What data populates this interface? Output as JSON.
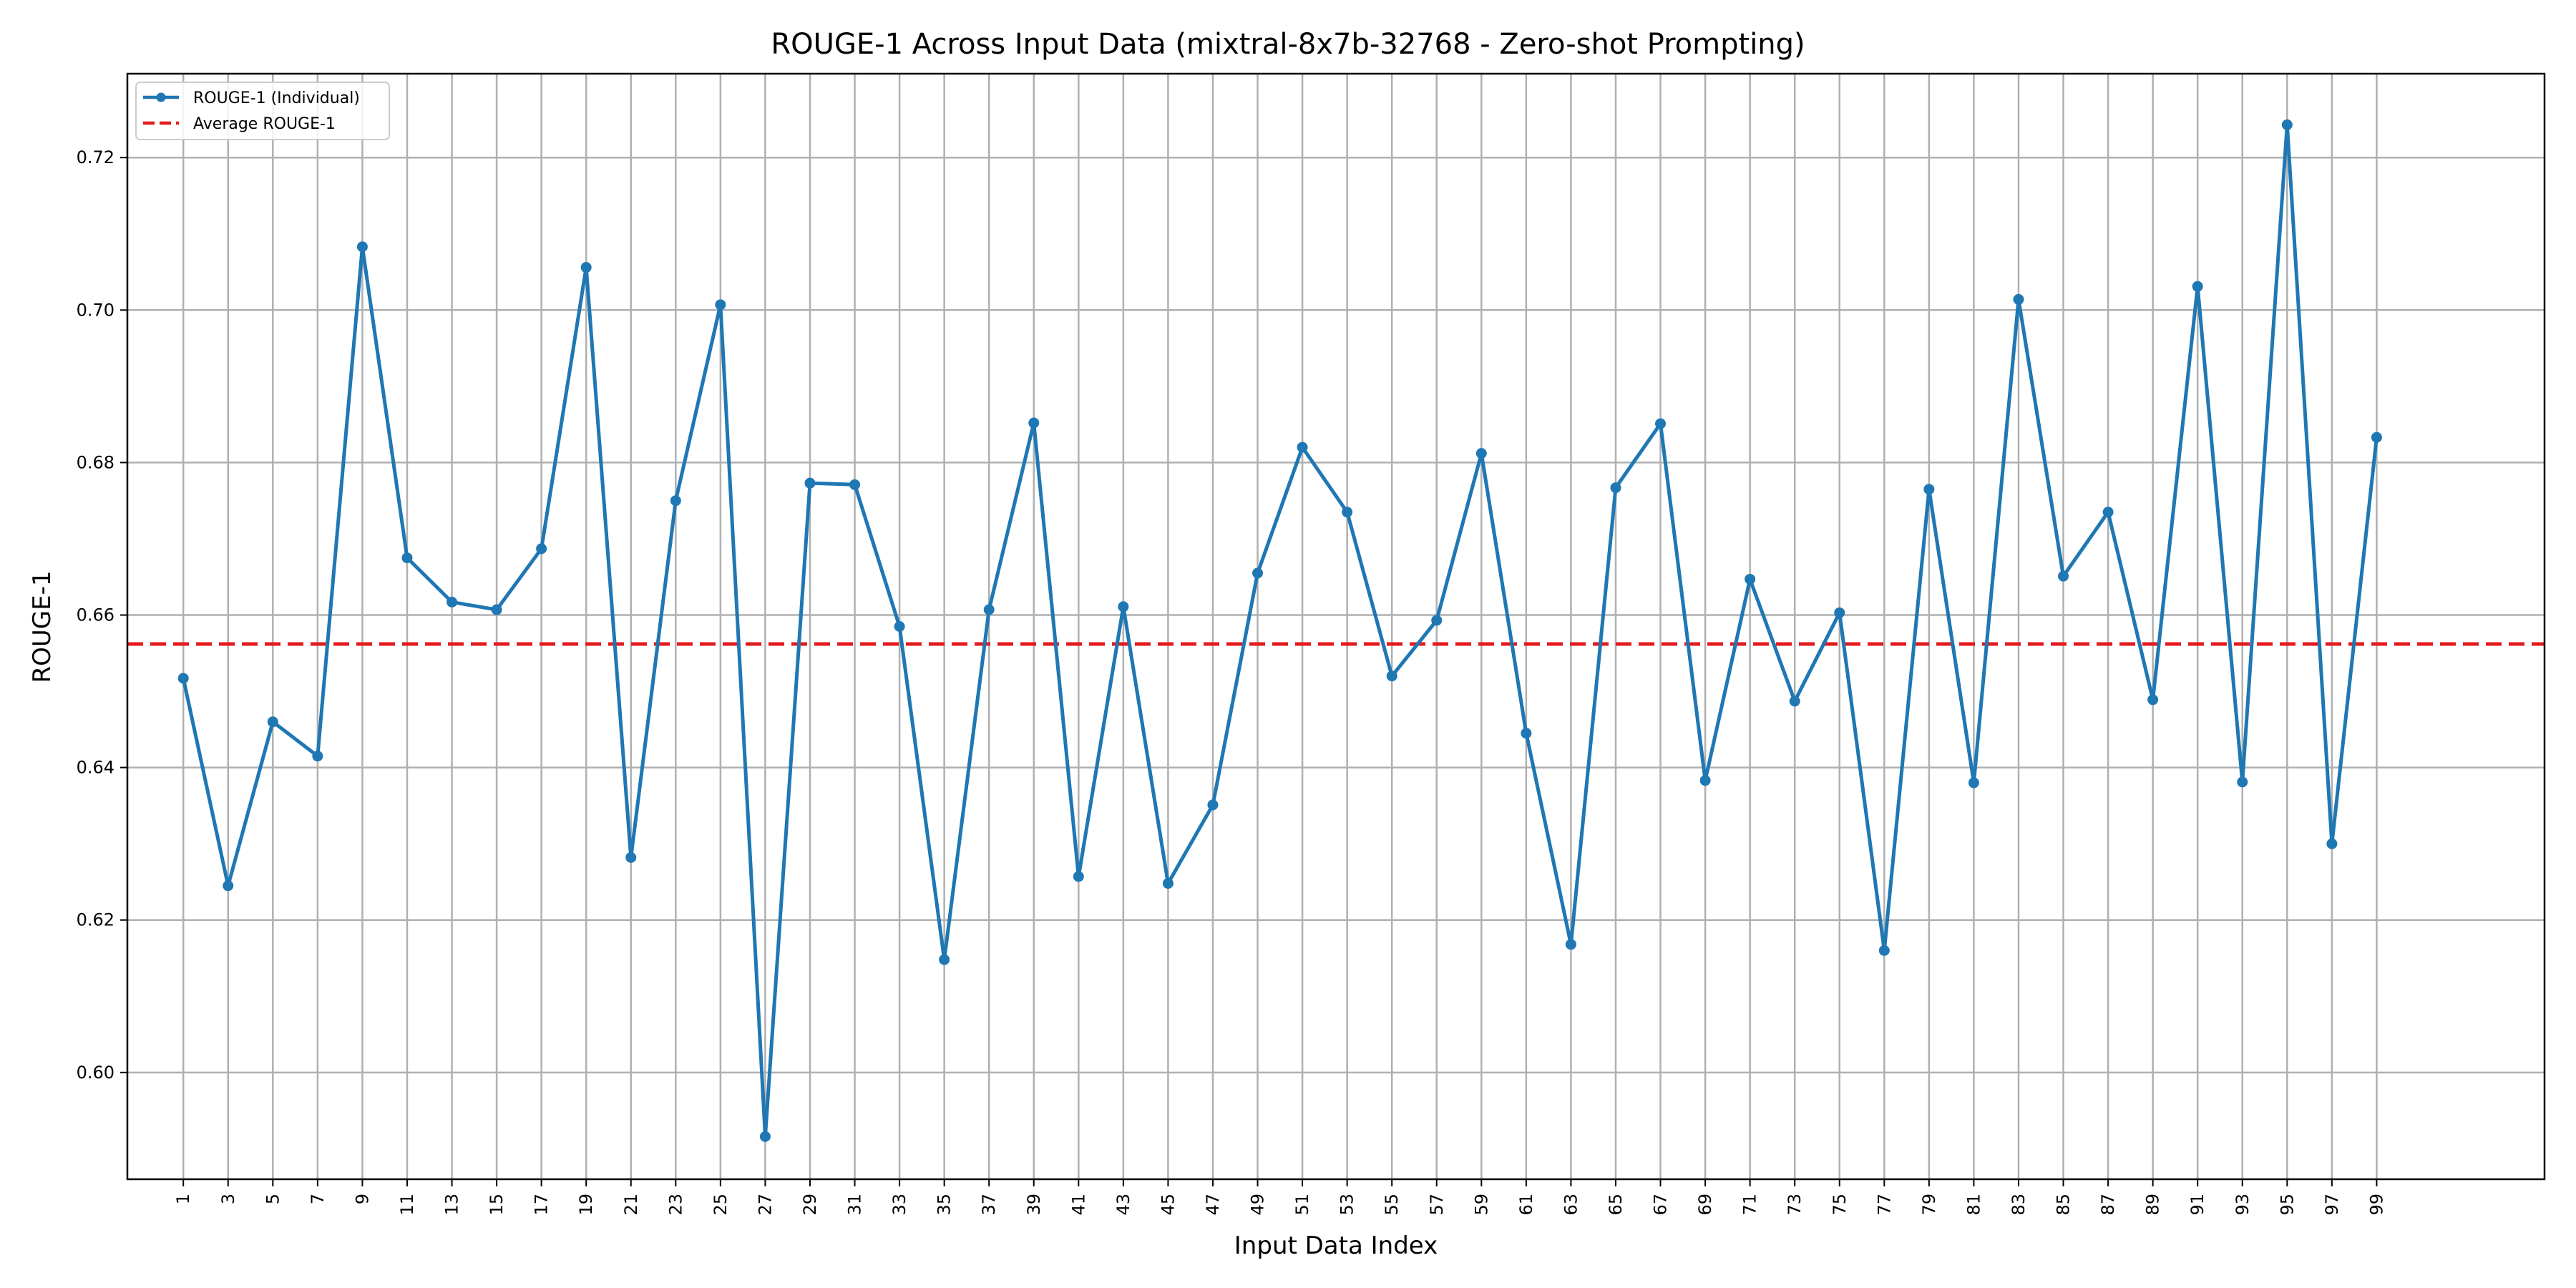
{
  "colors": {
    "series_line": "#1f77b4",
    "average_line": "#e31a1c",
    "grid": "#b0b0b0",
    "axes": "#000000"
  },
  "chart_data": {
    "type": "line",
    "title": "ROUGE-1 Across Input Data (mixtral-8x7b-32768 - Zero-shot Prompting)",
    "xlabel": "Input Data Index",
    "ylabel": "ROUGE-1",
    "xlim": [
      -1.5,
      106.5
    ],
    "ylim": [
      0.586,
      0.731
    ],
    "grid": true,
    "legend_placement": "top-left",
    "x_ticks": [
      1,
      3,
      5,
      7,
      9,
      11,
      13,
      15,
      17,
      19,
      21,
      23,
      25,
      27,
      29,
      31,
      33,
      35,
      37,
      39,
      41,
      43,
      45,
      47,
      49,
      51,
      53,
      55,
      57,
      59,
      61,
      63,
      65,
      67,
      69,
      71,
      73,
      75,
      77,
      79,
      81,
      83,
      85,
      87,
      89,
      91,
      93,
      95,
      97,
      99
    ],
    "y_ticks": [
      0.6,
      0.62,
      0.64,
      0.66,
      0.68,
      0.7,
      0.72
    ],
    "y_tick_labels": [
      "0.60",
      "0.62",
      "0.64",
      "0.66",
      "0.68",
      "0.70",
      "0.72"
    ],
    "series": [
      {
        "name": "ROUGE-1 (Individual)",
        "x": [
          1,
          3,
          5,
          7,
          9,
          11,
          13,
          15,
          17,
          19,
          21,
          23,
          25,
          27,
          29,
          31,
          33,
          35,
          37,
          39,
          41,
          43,
          45,
          47,
          49,
          51,
          53,
          55,
          57,
          59,
          61,
          63,
          65,
          67,
          69,
          71,
          73,
          75,
          77,
          79,
          81,
          83,
          85,
          87,
          89,
          91,
          93,
          95,
          97,
          99
        ],
        "values": [
          0.6517,
          0.6245,
          0.646,
          0.6415,
          0.7083,
          0.6675,
          0.6617,
          0.6607,
          0.6687,
          0.7056,
          0.6282,
          0.675,
          0.7007,
          0.5916,
          0.6773,
          0.6771,
          0.6585,
          0.6148,
          0.6607,
          0.6852,
          0.6257,
          0.6611,
          0.6248,
          0.6351,
          0.6655,
          0.682,
          0.6735,
          0.652,
          0.6593,
          0.6812,
          0.6445,
          0.6168,
          0.6767,
          0.6851,
          0.6383,
          0.6647,
          0.6487,
          0.6603,
          0.616,
          0.6765,
          0.638,
          0.7014,
          0.6651,
          0.6735,
          0.6489,
          0.7031,
          0.6381,
          0.7243,
          0.63,
          0.6833
        ]
      },
      {
        "name": "Average ROUGE-1",
        "y": 0.6562,
        "style": "dashed"
      }
    ]
  }
}
